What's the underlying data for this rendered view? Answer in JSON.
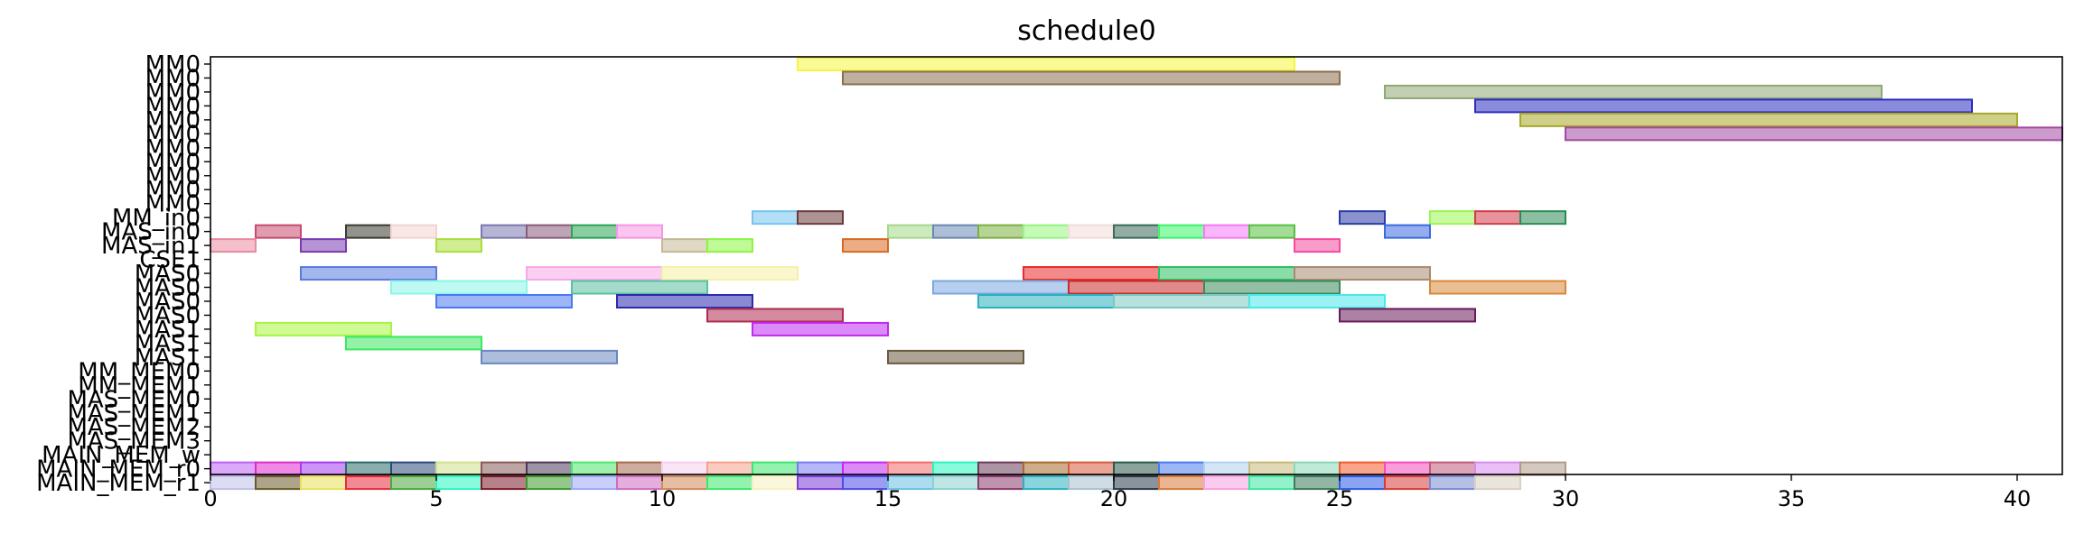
{
  "chart_data": {
    "type": "gantt",
    "title": "schedule0",
    "xlim": [
      0,
      41
    ],
    "xticks": [
      0,
      5,
      10,
      15,
      20,
      25,
      30,
      35,
      40
    ],
    "grid": false,
    "legend": "none",
    "rows": [
      "MM0",
      "MM0",
      "MM0",
      "MM0",
      "MM0",
      "MM0",
      "MM0",
      "MM0",
      "MM0",
      "MM0",
      "MM0",
      "MM_in0",
      "MAS_in0",
      "MAS_in1",
      "CSE1",
      "MAS0",
      "MAS0",
      "MAS0",
      "MAS0",
      "MAS1",
      "MAS1",
      "MAS1",
      "MM_MEM0",
      "MM_MEM1",
      "MAS_MEM0",
      "MAS_MEM1",
      "MAS_MEM2",
      "MAS_MEM3",
      "MAIN_MEM_w",
      "MAIN_MEM_r0",
      "MAIN_MEM_r1"
    ],
    "tasks": [
      {
        "row": 0,
        "start": 13,
        "end": 24,
        "color": "#f5f542"
      },
      {
        "row": 1,
        "start": 14,
        "end": 25,
        "color": "#8b6e4e"
      },
      {
        "row": 2,
        "start": 26,
        "end": 37,
        "color": "#8fa874"
      },
      {
        "row": 3,
        "start": 28,
        "end": 39,
        "color": "#2b2bc0"
      },
      {
        "row": 4,
        "start": 29,
        "end": 40,
        "color": "#a8a82a"
      },
      {
        "row": 5,
        "start": 30,
        "end": 41,
        "color": "#a348a0"
      },
      {
        "row": 11,
        "start": 12,
        "end": 13,
        "color": "#74c4ef"
      },
      {
        "row": 11,
        "start": 13,
        "end": 14,
        "color": "#6b3a3a"
      },
      {
        "row": 11,
        "start": 25,
        "end": 26,
        "color": "#2a3aa8"
      },
      {
        "row": 11,
        "start": 27,
        "end": 28,
        "color": "#9af552"
      },
      {
        "row": 11,
        "start": 28,
        "end": 29,
        "color": "#d23a4a"
      },
      {
        "row": 11,
        "start": 29,
        "end": 30,
        "color": "#2e8a55"
      },
      {
        "row": 12,
        "start": 1,
        "end": 2,
        "color": "#c84a6e"
      },
      {
        "row": 12,
        "start": 3,
        "end": 4,
        "color": "#3a3a30"
      },
      {
        "row": 12,
        "start": 4,
        "end": 5,
        "color": "#f2d4d0"
      },
      {
        "row": 12,
        "start": 6,
        "end": 7,
        "color": "#7a78b0"
      },
      {
        "row": 12,
        "start": 7,
        "end": 8,
        "color": "#8a5a7a"
      },
      {
        "row": 12,
        "start": 8,
        "end": 9,
        "color": "#2aa455"
      },
      {
        "row": 12,
        "start": 9,
        "end": 10,
        "color": "#f595e5"
      },
      {
        "row": 12,
        "start": 15,
        "end": 16,
        "color": "#a4d88a"
      },
      {
        "row": 12,
        "start": 16,
        "end": 17,
        "color": "#6a88b5"
      },
      {
        "row": 12,
        "start": 17,
        "end": 18,
        "color": "#7ab040"
      },
      {
        "row": 12,
        "start": 18,
        "end": 19,
        "color": "#96f580"
      },
      {
        "row": 12,
        "start": 19,
        "end": 20,
        "color": "#f0dcd8"
      },
      {
        "row": 12,
        "start": 20,
        "end": 21,
        "color": "#3a6a5a"
      },
      {
        "row": 12,
        "start": 21,
        "end": 22,
        "color": "#3af56a"
      },
      {
        "row": 12,
        "start": 22,
        "end": 23,
        "color": "#f57af5"
      },
      {
        "row": 12,
        "start": 23,
        "end": 24,
        "color": "#56c040"
      },
      {
        "row": 12,
        "start": 26,
        "end": 27,
        "color": "#3a6ae0"
      },
      {
        "row": 13,
        "start": 0,
        "end": 1,
        "color": "#e88aa0"
      },
      {
        "row": 13,
        "start": 2,
        "end": 3,
        "color": "#7a3ab0"
      },
      {
        "row": 13,
        "start": 5,
        "end": 6,
        "color": "#a8e03a"
      },
      {
        "row": 13,
        "start": 10,
        "end": 11,
        "color": "#c4b896"
      },
      {
        "row": 13,
        "start": 11,
        "end": 12,
        "color": "#8af540"
      },
      {
        "row": 13,
        "start": 14,
        "end": 15,
        "color": "#d86a20"
      },
      {
        "row": 13,
        "start": 24,
        "end": 25,
        "color": "#f54aa0"
      },
      {
        "row": 15,
        "start": 2,
        "end": 5,
        "color": "#5a7ae0"
      },
      {
        "row": 15,
        "start": 7,
        "end": 10,
        "color": "#f5a8e8"
      },
      {
        "row": 15,
        "start": 10,
        "end": 13,
        "color": "#f5f0a8"
      },
      {
        "row": 15,
        "start": 18,
        "end": 21,
        "color": "#e82a2a"
      },
      {
        "row": 15,
        "start": 21,
        "end": 24,
        "color": "#2ac060"
      },
      {
        "row": 15,
        "start": 24,
        "end": 27,
        "color": "#a88a70"
      },
      {
        "row": 16,
        "start": 4,
        "end": 7,
        "color": "#8af5e8"
      },
      {
        "row": 16,
        "start": 8,
        "end": 11,
        "color": "#5ac0a0"
      },
      {
        "row": 16,
        "start": 16,
        "end": 19,
        "color": "#7aa8e0"
      },
      {
        "row": 16,
        "start": 19,
        "end": 22,
        "color": "#c82a2a"
      },
      {
        "row": 16,
        "start": 22,
        "end": 25,
        "color": "#3a8a5a"
      },
      {
        "row": 16,
        "start": 27,
        "end": 30,
        "color": "#d8883a"
      },
      {
        "row": 17,
        "start": 5,
        "end": 8,
        "color": "#4a7af0"
      },
      {
        "row": 17,
        "start": 9,
        "end": 12,
        "color": "#2a2ab0"
      },
      {
        "row": 17,
        "start": 17,
        "end": 20,
        "color": "#2ab0c0"
      },
      {
        "row": 17,
        "start": 20,
        "end": 23,
        "color": "#7ac8c0"
      },
      {
        "row": 17,
        "start": 23,
        "end": 26,
        "color": "#4ae8e8"
      },
      {
        "row": 18,
        "start": 11,
        "end": 14,
        "color": "#b02a50"
      },
      {
        "row": 18,
        "start": 25,
        "end": 28,
        "color": "#6a1a5a"
      },
      {
        "row": 19,
        "start": 1,
        "end": 4,
        "color": "#a8f540"
      },
      {
        "row": 19,
        "start": 12,
        "end": 15,
        "color": "#c02af0"
      },
      {
        "row": 20,
        "start": 3,
        "end": 6,
        "color": "#3ae860"
      },
      {
        "row": 21,
        "start": 6,
        "end": 9,
        "color": "#6a88c0"
      },
      {
        "row": 21,
        "start": 15,
        "end": 18,
        "color": "#6a5a40"
      },
      {
        "row": 29,
        "start": 0,
        "end": 1,
        "color": "#c060f5"
      },
      {
        "row": 29,
        "start": 1,
        "end": 2,
        "color": "#e02ad0"
      },
      {
        "row": 29,
        "start": 2,
        "end": 3,
        "color": "#a83af0"
      },
      {
        "row": 29,
        "start": 3,
        "end": 4,
        "color": "#2a6a6a"
      },
      {
        "row": 29,
        "start": 4,
        "end": 5,
        "color": "#2a4a7a"
      },
      {
        "row": 29,
        "start": 5,
        "end": 6,
        "color": "#d0e08a"
      },
      {
        "row": 29,
        "start": 6,
        "end": 7,
        "color": "#8a5a5a"
      },
      {
        "row": 29,
        "start": 7,
        "end": 8,
        "color": "#4a3a5a"
      },
      {
        "row": 29,
        "start": 8,
        "end": 9,
        "color": "#4ae86a"
      },
      {
        "row": 29,
        "start": 9,
        "end": 10,
        "color": "#a86a4a"
      },
      {
        "row": 29,
        "start": 10,
        "end": 11,
        "color": "#f5d0f0"
      },
      {
        "row": 29,
        "start": 11,
        "end": 12,
        "color": "#f5a08a"
      },
      {
        "row": 29,
        "start": 12,
        "end": 13,
        "color": "#3ae86a"
      },
      {
        "row": 29,
        "start": 13,
        "end": 14,
        "color": "#7a7af5"
      },
      {
        "row": 29,
        "start": 14,
        "end": 15,
        "color": "#c02af0"
      },
      {
        "row": 29,
        "start": 15,
        "end": 16,
        "color": "#f56a6a"
      },
      {
        "row": 29,
        "start": 16,
        "end": 17,
        "color": "#2af5c0"
      },
      {
        "row": 29,
        "start": 17,
        "end": 18,
        "color": "#6a3a5a"
      },
      {
        "row": 29,
        "start": 18,
        "end": 19,
        "color": "#a86a2a"
      },
      {
        "row": 29,
        "start": 19,
        "end": 20,
        "color": "#d85a3a"
      },
      {
        "row": 29,
        "start": 20,
        "end": 21,
        "color": "#2a5a4a"
      },
      {
        "row": 29,
        "start": 21,
        "end": 22,
        "color": "#4a7af0"
      },
      {
        "row": 29,
        "start": 22,
        "end": 23,
        "color": "#b0d0f0"
      },
      {
        "row": 29,
        "start": 23,
        "end": 24,
        "color": "#c8b87a"
      },
      {
        "row": 29,
        "start": 24,
        "end": 25,
        "color": "#8ad8b8"
      },
      {
        "row": 29,
        "start": 25,
        "end": 26,
        "color": "#f55a2a"
      },
      {
        "row": 29,
        "start": 26,
        "end": 27,
        "color": "#f54ac0"
      },
      {
        "row": 29,
        "start": 27,
        "end": 28,
        "color": "#c05a7a"
      },
      {
        "row": 29,
        "start": 28,
        "end": 29,
        "color": "#d88af0"
      },
      {
        "row": 29,
        "start": 29,
        "end": 30,
        "color": "#b09a8a"
      },
      {
        "row": 30,
        "start": 0,
        "end": 1,
        "color": "#c0c0e8"
      },
      {
        "row": 30,
        "start": 1,
        "end": 2,
        "color": "#6a5a2a"
      },
      {
        "row": 30,
        "start": 2,
        "end": 3,
        "color": "#e8e05a"
      },
      {
        "row": 30,
        "start": 3,
        "end": 4,
        "color": "#e82a3a"
      },
      {
        "row": 30,
        "start": 4,
        "end": 5,
        "color": "#4aa83a"
      },
      {
        "row": 30,
        "start": 5,
        "end": 6,
        "color": "#2af5c0"
      },
      {
        "row": 30,
        "start": 6,
        "end": 7,
        "color": "#7a1a2a"
      },
      {
        "row": 30,
        "start": 7,
        "end": 8,
        "color": "#3a9a2a"
      },
      {
        "row": 30,
        "start": 8,
        "end": 9,
        "color": "#9aa8f5"
      },
      {
        "row": 30,
        "start": 9,
        "end": 10,
        "color": "#d06ac0"
      },
      {
        "row": 30,
        "start": 10,
        "end": 11,
        "color": "#d0885a"
      },
      {
        "row": 30,
        "start": 11,
        "end": 12,
        "color": "#3ae86a"
      },
      {
        "row": 30,
        "start": 12,
        "end": 13,
        "color": "#f5f0c0"
      },
      {
        "row": 30,
        "start": 13,
        "end": 14,
        "color": "#7a3ad8"
      },
      {
        "row": 30,
        "start": 14,
        "end": 15,
        "color": "#4a4ae8"
      },
      {
        "row": 30,
        "start": 15,
        "end": 16,
        "color": "#6ac0e0"
      },
      {
        "row": 30,
        "start": 16,
        "end": 17,
        "color": "#8ad0d0"
      },
      {
        "row": 30,
        "start": 17,
        "end": 18,
        "color": "#8a3a6a"
      },
      {
        "row": 30,
        "start": 18,
        "end": 19,
        "color": "#2ab0c0"
      },
      {
        "row": 30,
        "start": 19,
        "end": 20,
        "color": "#a8c0d0"
      },
      {
        "row": 30,
        "start": 20,
        "end": 21,
        "color": "#2a3a4a"
      },
      {
        "row": 30,
        "start": 21,
        "end": 22,
        "color": "#d8783a"
      },
      {
        "row": 30,
        "start": 22,
        "end": 23,
        "color": "#f5a0e0"
      },
      {
        "row": 30,
        "start": 23,
        "end": 24,
        "color": "#3ae8a0"
      },
      {
        "row": 30,
        "start": 24,
        "end": 25,
        "color": "#3a7a5a"
      },
      {
        "row": 30,
        "start": 25,
        "end": 26,
        "color": "#2a5ae8"
      },
      {
        "row": 30,
        "start": 26,
        "end": 27,
        "color": "#d83a3a"
      },
      {
        "row": 30,
        "start": 27,
        "end": 28,
        "color": "#7a8ad0"
      },
      {
        "row": 30,
        "start": 28,
        "end": 29,
        "color": "#d8d0c0"
      }
    ]
  }
}
